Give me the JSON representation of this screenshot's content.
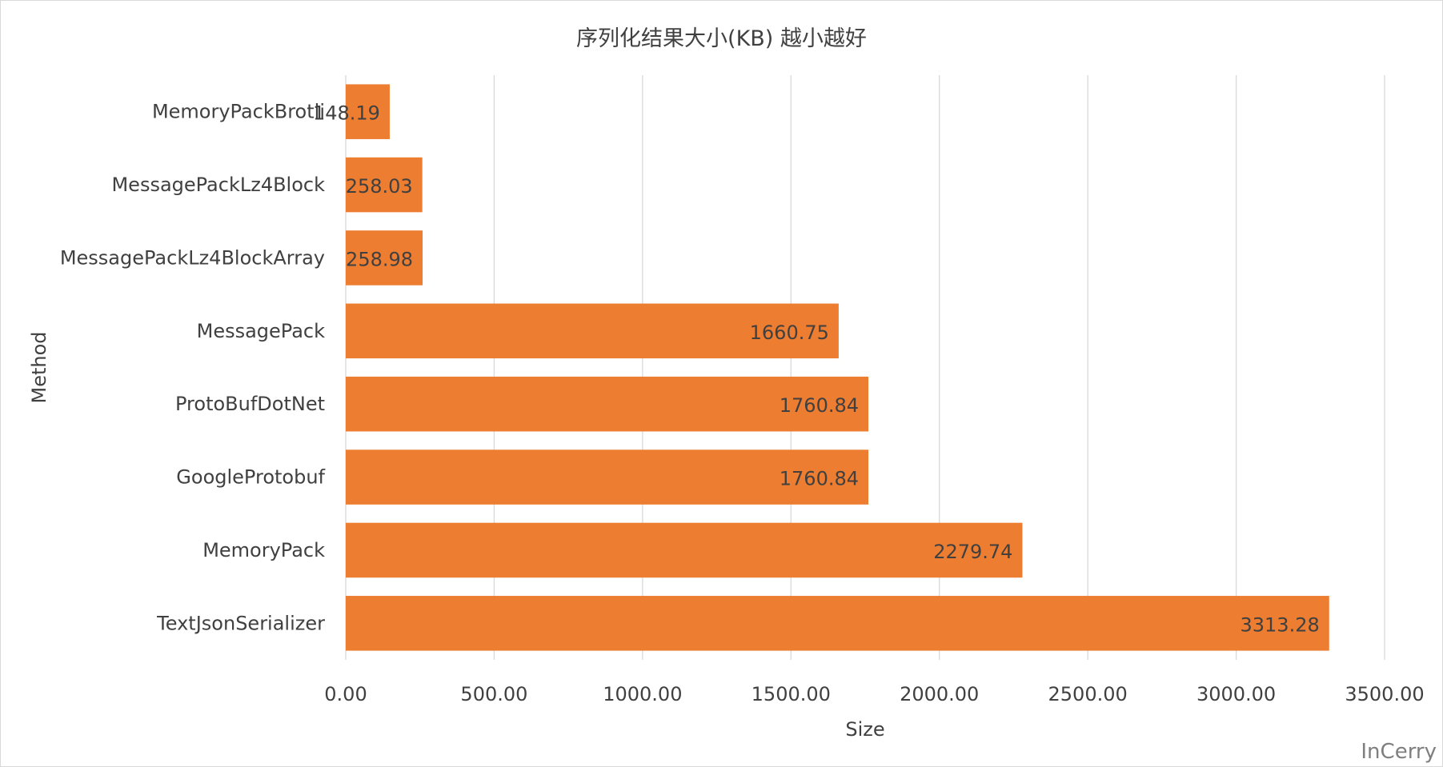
{
  "chart_data": {
    "type": "bar",
    "orientation": "horizontal",
    "title": "序列化结果大小(KB) 越小越好",
    "xlabel": "Size",
    "ylabel": "Method",
    "categories": [
      "MemoryPackBrotli",
      "MessagePackLz4Block",
      "MessagePackLz4BlockArray",
      "MessagePack",
      "ProtoBufDotNet",
      "GoogleProtobuf",
      "MemoryPack",
      "TextJsonSerializer"
    ],
    "values": [
      148.19,
      258.03,
      258.98,
      1660.75,
      1760.84,
      1760.84,
      2279.74,
      3313.28
    ],
    "data_labels": [
      "148.19",
      "258.03",
      "258.98",
      "1660.75",
      "1760.84",
      "1760.84",
      "2279.74",
      "3313.28"
    ],
    "xlim": [
      0,
      3500
    ],
    "xticks": [
      0,
      500,
      1000,
      1500,
      2000,
      2500,
      3000,
      3500
    ],
    "xtick_labels": [
      "0.00",
      "500.00",
      "1000.00",
      "1500.00",
      "2000.00",
      "2500.00",
      "3000.00",
      "3500.00"
    ],
    "grid": true,
    "legend": "none",
    "bar_color": "#ED7D31",
    "grid_color": "#D9D9D9",
    "text_color": "#404040"
  },
  "watermark": "InCerry"
}
